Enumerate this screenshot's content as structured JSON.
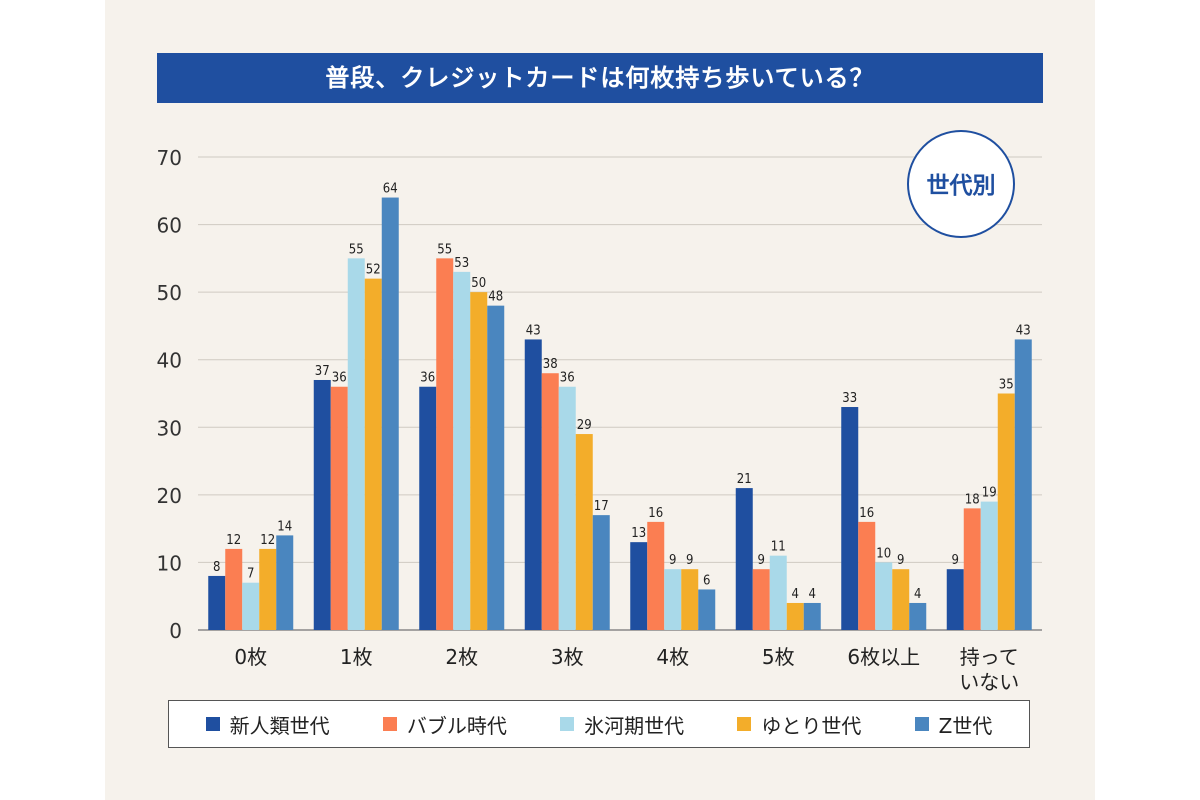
{
  "chart_data": {
    "type": "bar",
    "title": "普段、クレジットカードは何枚持ち歩いている？",
    "badge": "世代別",
    "categories": [
      "0枚",
      "1枚",
      "2枚",
      "3枚",
      "4枚",
      "5枚",
      "6枚以上",
      "持って\nいない"
    ],
    "ylim": [
      0,
      70
    ],
    "yticks": [
      0,
      10,
      20,
      30,
      40,
      50,
      60,
      70
    ],
    "grid": true,
    "legend_position": "bottom",
    "series": [
      {
        "name": "新人類世代",
        "color": "#1f4fa0",
        "values": [
          8,
          37,
          36,
          43,
          13,
          21,
          33,
          9
        ]
      },
      {
        "name": "バブル時代",
        "color": "#fb7e52",
        "values": [
          12,
          36,
          55,
          38,
          16,
          9,
          16,
          18
        ]
      },
      {
        "name": "氷河期世代",
        "color": "#a9d9e9",
        "values": [
          7,
          55,
          53,
          36,
          9,
          11,
          10,
          19
        ]
      },
      {
        "name": "ゆとり世代",
        "color": "#f3ad2a",
        "values": [
          12,
          52,
          50,
          29,
          9,
          4,
          9,
          35
        ]
      },
      {
        "name": "Z世代",
        "color": "#4a86bf",
        "values": [
          14,
          64,
          48,
          17,
          6,
          4,
          4,
          43
        ]
      }
    ]
  }
}
